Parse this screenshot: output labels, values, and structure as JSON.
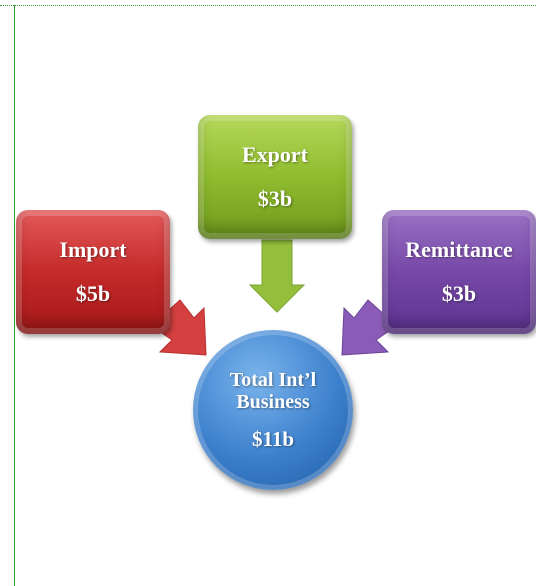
{
  "nodes": [
    {
      "label": "Import",
      "value": "$5b"
    },
    {
      "label": "Export",
      "value": "$3b"
    },
    {
      "label": "Remittance",
      "value": "$3b"
    }
  ],
  "center": {
    "label": "Total Int’l Business",
    "value": "$11b"
  }
}
